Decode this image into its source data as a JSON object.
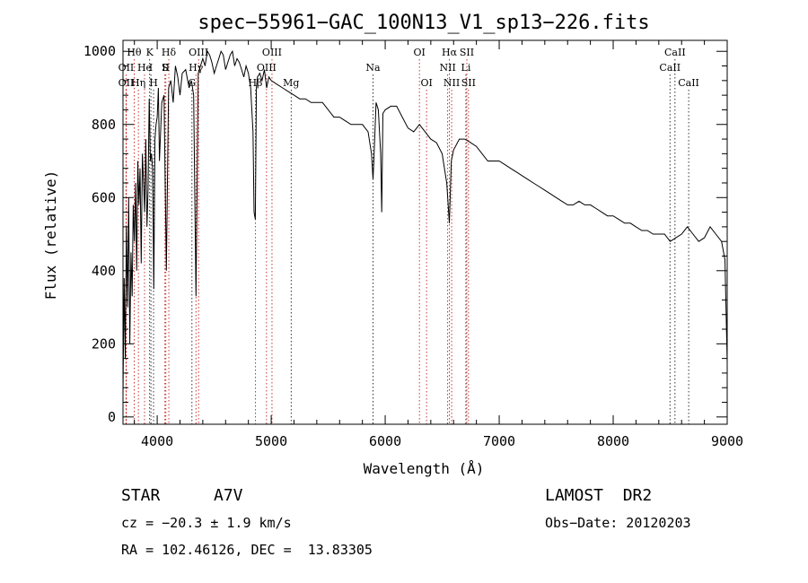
{
  "chart_data": {
    "type": "line",
    "title": "spec−55961−GAC_100N13_V1_sp13−226.fits",
    "xlabel": "Wavelength (Å)",
    "ylabel": "Flux (relative)",
    "xlim": [
      3700,
      9000
    ],
    "ylim": [
      -20,
      1030
    ],
    "xticks": [
      4000,
      5000,
      6000,
      7000,
      8000,
      9000
    ],
    "yticks": [
      0,
      200,
      400,
      600,
      800,
      1000
    ],
    "grid": false,
    "series": [
      {
        "x": [
          3700,
          3710,
          3720,
          3730,
          3740,
          3750,
          3760,
          3770,
          3780,
          3790,
          3800,
          3810,
          3820,
          3830,
          3840,
          3850,
          3860,
          3870,
          3880,
          3890,
          3900,
          3910,
          3920,
          3930,
          3940,
          3950,
          3960,
          3970,
          3980,
          3990,
          4000,
          4010,
          4020,
          4040,
          4060,
          4080,
          4100,
          4120,
          4140,
          4160,
          4180,
          4200,
          4220,
          4250,
          4280,
          4300,
          4320,
          4340,
          4360,
          4380,
          4400,
          4420,
          4440,
          4460,
          4480,
          4500,
          4520,
          4540,
          4560,
          4580,
          4600,
          4620,
          4640,
          4660,
          4680,
          4700,
          4720,
          4740,
          4760,
          4780,
          4800,
          4820,
          4840,
          4850,
          4861,
          4870,
          4880,
          4900,
          4920,
          4940,
          4960,
          4980,
          5000,
          5050,
          5100,
          5150,
          5200,
          5250,
          5300,
          5350,
          5400,
          5450,
          5500,
          5550,
          5600,
          5650,
          5700,
          5750,
          5800,
          5850,
          5880,
          5893,
          5900,
          5920,
          5940,
          5960,
          5970,
          5980,
          6000,
          6050,
          6100,
          6150,
          6200,
          6250,
          6300,
          6350,
          6400,
          6450,
          6500,
          6540,
          6563,
          6580,
          6600,
          6650,
          6700,
          6750,
          6800,
          6850,
          6900,
          6950,
          7000,
          7050,
          7100,
          7150,
          7200,
          7250,
          7300,
          7350,
          7400,
          7450,
          7500,
          7550,
          7600,
          7650,
          7700,
          7750,
          7800,
          7850,
          7900,
          7950,
          8000,
          8050,
          8100,
          8150,
          8200,
          8250,
          8300,
          8350,
          8400,
          8450,
          8500,
          8550,
          8600,
          8650,
          8700,
          8750,
          8800,
          8850,
          8900,
          8950,
          8980,
          9000
        ],
        "y": [
          60,
          380,
          160,
          520,
          300,
          600,
          200,
          450,
          330,
          580,
          480,
          640,
          400,
          700,
          580,
          680,
          420,
          720,
          640,
          560,
          760,
          520,
          620,
          870,
          700,
          720,
          680,
          350,
          760,
          800,
          820,
          900,
          700,
          860,
          880,
          400,
          900,
          920,
          860,
          960,
          930,
          880,
          940,
          950,
          900,
          920,
          880,
          330,
          940,
          960,
          980,
          960,
          1000,
          990,
          970,
          940,
          960,
          980,
          1000,
          990,
          950,
          970,
          990,
          1000,
          960,
          980,
          970,
          950,
          930,
          960,
          940,
          900,
          780,
          560,
          540,
          900,
          930,
          940,
          920,
          950,
          900,
          930,
          920,
          910,
          900,
          890,
          880,
          870,
          870,
          860,
          860,
          860,
          840,
          820,
          820,
          810,
          800,
          800,
          800,
          780,
          720,
          650,
          700,
          860,
          840,
          720,
          560,
          830,
          840,
          850,
          850,
          820,
          790,
          780,
          800,
          780,
          760,
          750,
          720,
          640,
          530,
          700,
          730,
          760,
          760,
          750,
          740,
          720,
          700,
          700,
          700,
          690,
          680,
          670,
          660,
          650,
          640,
          630,
          620,
          610,
          600,
          590,
          580,
          580,
          590,
          580,
          580,
          570,
          560,
          550,
          550,
          540,
          530,
          530,
          520,
          510,
          510,
          500,
          500,
          500,
          480,
          490,
          500,
          520,
          500,
          480,
          490,
          520,
          500,
          480,
          430,
          150
        ]
      }
    ],
    "lines": [
      {
        "name": "Hθ",
        "x": 3798,
        "row": 1,
        "color": "#c00000"
      },
      {
        "name": "K",
        "x": 3934,
        "row": 1,
        "color": "#000000"
      },
      {
        "name": "Hδ",
        "x": 4102,
        "row": 1,
        "color": "#c00000"
      },
      {
        "name": "OIII",
        "x": 4363,
        "row": 1,
        "color": "#c00000"
      },
      {
        "name": "OIII",
        "x": 5007,
        "row": 1,
        "color": "#c00000"
      },
      {
        "name": "Na",
        "x": 5893,
        "row": 2,
        "color": "#000000"
      },
      {
        "name": "OI",
        "x": 6300,
        "row": 1,
        "color": "#c00000"
      },
      {
        "name": "Hα",
        "x": 6563,
        "row": 1,
        "color": "#c00000"
      },
      {
        "name": "SII",
        "x": 6716,
        "row": 1,
        "color": "#c00000"
      },
      {
        "name": "CaII",
        "x": 8542,
        "row": 1,
        "color": "#000000"
      },
      {
        "name": "OII",
        "x": 3727,
        "row": 2,
        "color": "#c00000"
      },
      {
        "name": "He",
        "x": 3889,
        "row": 2,
        "color": "#c00000"
      },
      {
        "name": "I",
        "x": 3945,
        "row": 2,
        "color": "#000000"
      },
      {
        "name": "S",
        "x": 4068,
        "row": 2,
        "color": "#c00000"
      },
      {
        "name": "II",
        "x": 4076,
        "row": 2,
        "color": "#c00000"
      },
      {
        "name": "Hγ",
        "x": 4340,
        "row": 2,
        "color": "#c00000"
      },
      {
        "name": "OIII",
        "x": 4959,
        "row": 2,
        "color": "#c00000"
      },
      {
        "name": "NII",
        "x": 6548,
        "row": 2,
        "color": "#c00000"
      },
      {
        "name": "Li",
        "x": 6708,
        "row": 2,
        "color": "#000000"
      },
      {
        "name": "CaII",
        "x": 8498,
        "row": 2,
        "color": "#000000"
      },
      {
        "name": "OII",
        "x": 3727,
        "row": 3,
        "color": "#c00000"
      },
      {
        "name": "Hη",
        "x": 3835,
        "row": 3,
        "color": "#c00000"
      },
      {
        "name": "H",
        "x": 3968,
        "row": 3,
        "color": "#000000"
      },
      {
        "name": "G",
        "x": 4305,
        "row": 3,
        "color": "#000000"
      },
      {
        "name": "Hβ",
        "x": 4861,
        "row": 3,
        "color": "#c00000"
      },
      {
        "name": "Mg",
        "x": 5175,
        "row": 3,
        "color": "#000000"
      },
      {
        "name": "OI",
        "x": 6363,
        "row": 3,
        "color": "#c00000"
      },
      {
        "name": "NII",
        "x": 6583,
        "row": 3,
        "color": "#c00000"
      },
      {
        "name": "SII",
        "x": 6731,
        "row": 3,
        "color": "#c00000"
      },
      {
        "name": "CaII",
        "x": 8662,
        "row": 3,
        "color": "#000000"
      }
    ]
  },
  "info": {
    "object_class": "STAR",
    "subclass": "A7V",
    "survey": "LAMOST  DR2",
    "redshift": "cz = −20.3 ± 1.9 km/s",
    "obs_date": "Obs−Date: 20120203",
    "coords": "RA = 102.46126, DEC =  13.83305"
  }
}
